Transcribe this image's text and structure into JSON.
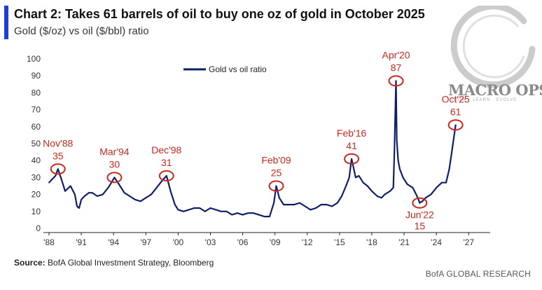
{
  "header": {
    "title": "Chart 2: Takes 61 barrels of oil to buy one oz of gold in October 2025",
    "subtitle": "Gold ($/oz) vs oil ($/bbl) ratio"
  },
  "footer": {
    "source_label": "Source:",
    "source_text": "BofA Global Investment Strategy, Bloomberg",
    "credit": "BofA GLOBAL RESEARCH"
  },
  "watermark": {
    "name": "MACRO OPS",
    "tagline": "THINK · LEARN · EVOLVE"
  },
  "colors": {
    "line": "#0f1f6b",
    "annotation": "#c8281e",
    "accent_bar": "#1f3fd1"
  },
  "chart_data": {
    "type": "line",
    "title": "Chart 2: Takes 61 barrels of oil to buy one oz of gold in October 2025",
    "subtitle": "Gold ($/oz) vs oil ($/bbl) ratio",
    "xlabel": "",
    "ylabel": "",
    "xlim": [
      1988,
      2029
    ],
    "ylim": [
      0,
      100
    ],
    "yticks": [
      0,
      10,
      20,
      30,
      40,
      50,
      60,
      70,
      80,
      90,
      100
    ],
    "xticks": [
      {
        "x": 1988,
        "label": "'88"
      },
      {
        "x": 1991,
        "label": "'91"
      },
      {
        "x": 1994,
        "label": "'94"
      },
      {
        "x": 1997,
        "label": "'97"
      },
      {
        "x": 2000,
        "label": "'00"
      },
      {
        "x": 2003,
        "label": "'03"
      },
      {
        "x": 2006,
        "label": "'06"
      },
      {
        "x": 2009,
        "label": "'09"
      },
      {
        "x": 2012,
        "label": "'12"
      },
      {
        "x": 2015,
        "label": "'15"
      },
      {
        "x": 2018,
        "label": "'18"
      },
      {
        "x": 2021,
        "label": "'21"
      },
      {
        "x": 2024,
        "label": "'24"
      },
      {
        "x": 2027,
        "label": "'27"
      }
    ],
    "grid": false,
    "legend_position": "top-left",
    "series": [
      {
        "name": "Gold vs oil ratio",
        "x": [
          1988.0,
          1988.3,
          1988.6,
          1988.83,
          1989.1,
          1989.5,
          1990.0,
          1990.4,
          1990.6,
          1990.8,
          1991.0,
          1991.3,
          1991.7,
          1992.0,
          1992.5,
          1993.0,
          1993.5,
          1993.8,
          1994.08,
          1994.5,
          1995.0,
          1995.5,
          1996.0,
          1996.5,
          1997.0,
          1997.5,
          1998.0,
          1998.5,
          1998.92,
          1999.3,
          1999.7,
          2000.0,
          2000.5,
          2001.0,
          2001.5,
          2002.0,
          2002.5,
          2003.0,
          2003.5,
          2004.0,
          2004.5,
          2005.0,
          2005.5,
          2006.0,
          2006.5,
          2007.0,
          2007.5,
          2008.0,
          2008.5,
          2008.9,
          2009.12,
          2009.4,
          2009.8,
          2010.3,
          2010.8,
          2011.3,
          2011.8,
          2012.3,
          2012.8,
          2013.3,
          2013.8,
          2014.3,
          2014.8,
          2015.2,
          2015.6,
          2015.9,
          2016.12,
          2016.5,
          2016.8,
          2017.2,
          2017.6,
          2018.0,
          2018.5,
          2018.9,
          2019.2,
          2019.7,
          2020.0,
          2020.1,
          2020.25,
          2020.32,
          2020.45,
          2020.6,
          2020.9,
          2021.3,
          2021.8,
          2022.2,
          2022.45,
          2022.7,
          2023.0,
          2023.5,
          2024.0,
          2024.5,
          2024.9,
          2025.2,
          2025.5,
          2025.79
        ],
        "values": [
          27,
          29,
          31,
          35,
          30,
          22,
          25,
          20,
          13,
          12,
          17,
          19,
          21,
          21,
          19,
          20,
          24,
          27,
          30,
          26,
          21,
          19,
          17,
          16,
          18,
          20,
          24,
          28,
          31,
          22,
          14,
          11,
          10,
          11,
          12,
          12,
          10,
          12,
          11,
          10,
          10,
          8,
          9,
          8,
          9,
          9,
          8,
          7,
          7,
          15,
          25,
          18,
          14,
          14,
          14,
          15,
          13,
          11,
          12,
          14,
          14,
          13,
          15,
          19,
          25,
          30,
          41,
          30,
          31,
          27,
          25,
          22,
          19,
          18,
          20,
          22,
          24,
          45,
          87,
          52,
          40,
          35,
          30,
          26,
          24,
          19,
          15,
          16,
          18,
          20,
          24,
          27,
          27,
          35,
          48,
          61
        ]
      }
    ],
    "annotations": [
      {
        "label": "Nov'88",
        "value_label": "35",
        "x": 1988.83,
        "y": 35
      },
      {
        "label": "Mar'94",
        "value_label": "30",
        "x": 1994.08,
        "y": 30
      },
      {
        "label": "Dec'98",
        "value_label": "31",
        "x": 1998.92,
        "y": 31
      },
      {
        "label": "Feb'09",
        "value_label": "25",
        "x": 2009.12,
        "y": 25
      },
      {
        "label": "Feb'16",
        "value_label": "41",
        "x": 2016.12,
        "y": 41
      },
      {
        "label": "Apr'20",
        "value_label": "87",
        "x": 2020.25,
        "y": 87
      },
      {
        "label": "Jun'22",
        "value_label": "15",
        "x": 2022.45,
        "y": 15
      },
      {
        "label": "Oct'25",
        "value_label": "61",
        "x": 2025.79,
        "y": 61
      }
    ]
  }
}
